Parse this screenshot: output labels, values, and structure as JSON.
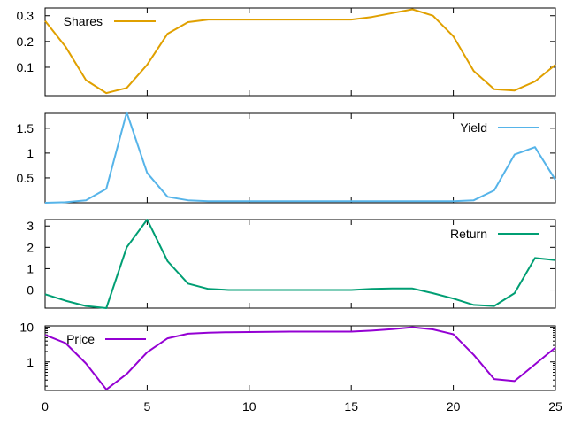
{
  "chart_data": [
    {
      "type": "line",
      "name": "shares-panel",
      "x": [
        0,
        1,
        2,
        3,
        4,
        5,
        6,
        7,
        8,
        9,
        10,
        11,
        12,
        13,
        14,
        15,
        16,
        17,
        18,
        19,
        20,
        21,
        22,
        23,
        24,
        25
      ],
      "series": [
        {
          "name": "Shares",
          "color": "#e0a000",
          "values": [
            0.28,
            0.18,
            0.05,
            0.0,
            0.02,
            0.11,
            0.23,
            0.275,
            0.285,
            0.285,
            0.285,
            0.285,
            0.285,
            0.285,
            0.285,
            0.285,
            0.295,
            0.31,
            0.325,
            0.3,
            0.22,
            0.085,
            0.015,
            0.01,
            0.045,
            0.11
          ]
        }
      ],
      "ylim": [
        -0.01,
        0.33
      ],
      "yticks": [
        0.1,
        0.2,
        0.3
      ],
      "ytick_labels": [
        "0.1",
        "0.2",
        "0.3"
      ],
      "legend": "top-left"
    },
    {
      "type": "line",
      "name": "yield-panel",
      "x": [
        0,
        1,
        2,
        3,
        4,
        5,
        6,
        7,
        8,
        9,
        10,
        11,
        12,
        13,
        14,
        15,
        16,
        17,
        18,
        19,
        20,
        21,
        22,
        23,
        24,
        25
      ],
      "series": [
        {
          "name": "Yield",
          "color": "#56b4e9",
          "values": [
            0.0,
            0.01,
            0.05,
            0.28,
            1.82,
            0.6,
            0.12,
            0.05,
            0.03,
            0.03,
            0.03,
            0.03,
            0.03,
            0.03,
            0.03,
            0.03,
            0.03,
            0.03,
            0.03,
            0.03,
            0.03,
            0.05,
            0.25,
            0.97,
            1.12,
            0.46
          ]
        }
      ],
      "ylim": [
        0,
        1.8
      ],
      "yticks": [
        0.5,
        1,
        1.5
      ],
      "ytick_labels": [
        "0.5",
        "1",
        "1.5"
      ],
      "legend": "top-right"
    },
    {
      "type": "line",
      "name": "return-panel",
      "x": [
        0,
        1,
        2,
        3,
        4,
        5,
        6,
        7,
        8,
        9,
        10,
        11,
        12,
        13,
        14,
        15,
        16,
        17,
        18,
        19,
        20,
        21,
        22,
        23,
        24,
        25
      ],
      "series": [
        {
          "name": "Return",
          "color": "#009e73",
          "values": [
            -0.2,
            -0.5,
            -0.75,
            -0.85,
            2.0,
            3.3,
            1.35,
            0.3,
            0.05,
            0.0,
            0.0,
            0.0,
            0.0,
            0.0,
            0.0,
            0.0,
            0.05,
            0.07,
            0.07,
            -0.15,
            -0.4,
            -0.7,
            -0.75,
            -0.15,
            1.5,
            1.4
          ]
        }
      ],
      "ylim": [
        -0.85,
        3.3
      ],
      "yticks": [
        0,
        1,
        2,
        3
      ],
      "ytick_labels": [
        "0",
        "1",
        "2",
        "3"
      ],
      "legend": "top-right"
    },
    {
      "type": "line",
      "name": "price-panel",
      "x": [
        0,
        1,
        2,
        3,
        4,
        5,
        6,
        7,
        8,
        9,
        10,
        11,
        12,
        13,
        14,
        15,
        16,
        17,
        18,
        19,
        20,
        21,
        22,
        23,
        24,
        25
      ],
      "series": [
        {
          "name": "Price",
          "color": "#9400d3",
          "values": [
            6.0,
            3.5,
            0.9,
            0.16,
            0.45,
            1.9,
            4.8,
            6.5,
            7.0,
            7.2,
            7.3,
            7.4,
            7.5,
            7.5,
            7.5,
            7.5,
            8.0,
            8.8,
            10.0,
            8.7,
            6.3,
            1.6,
            0.32,
            0.28,
            0.85,
            2.6
          ]
        }
      ],
      "yscale": "log",
      "ylim": [
        0.15,
        11
      ],
      "yticks": [
        1,
        10
      ],
      "ytick_labels": [
        "1",
        "10"
      ],
      "legend": "top-left"
    }
  ],
  "x_axis": {
    "range": [
      0,
      25
    ],
    "ticks": [
      0,
      5,
      10,
      15,
      20,
      25
    ],
    "tick_labels": [
      "0",
      "5",
      "10",
      "15",
      "20",
      "25"
    ]
  }
}
